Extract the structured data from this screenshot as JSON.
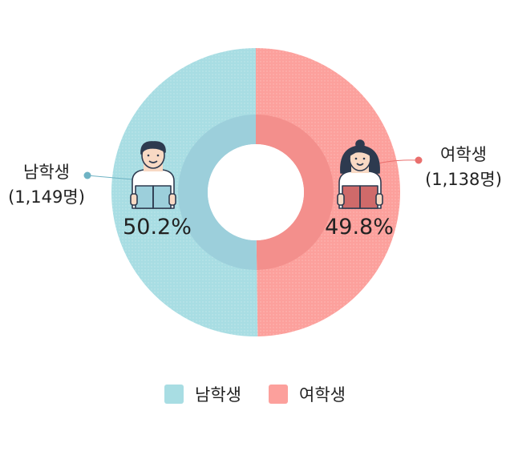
{
  "chart_data": {
    "type": "pie",
    "categories": [
      "남학생",
      "여학생"
    ],
    "values": [
      50.2,
      49.8
    ],
    "value_labels": [
      "50.2%",
      "49.8%"
    ],
    "counts": [
      "(1,149명)",
      "(1,138명)"
    ],
    "legend": {
      "entries": [
        "남학생",
        "여학생"
      ],
      "placement": "bottom"
    },
    "colors": {
      "male_outer": "#a8dde3",
      "male_inner": "#9ccfdb",
      "female_outer": "#fca09c",
      "female_inner": "#f38f8c",
      "male_dot": "#6fb3c4",
      "female_dot": "#e96f6d"
    }
  },
  "icons": {
    "male": "male-student-reading-icon",
    "female": "female-student-reading-icon"
  }
}
